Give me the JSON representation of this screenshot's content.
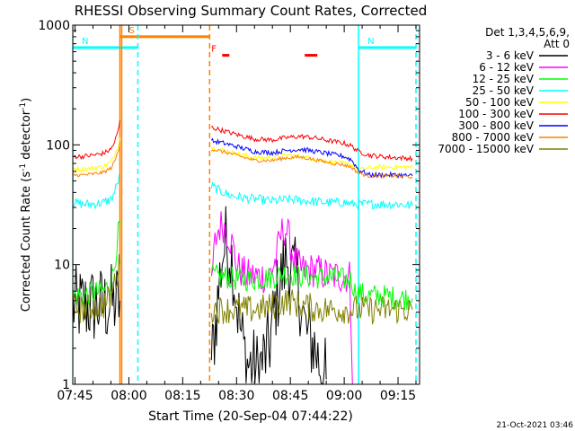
{
  "chart_data": {
    "type": "line",
    "title": "RHESSI Observing Summary Count Rates, Corrected",
    "xlabel": "Start Time (20-Sep-04 07:44:22)",
    "ylabel": "Corrected Count Rate (s⁻¹ detector⁻¹)",
    "ylabel_main": "Corrected Count Rate (s",
    "ylabel_sup1": "-1",
    "ylabel_mid": " detector",
    "ylabel_sup2": "-1",
    "ylabel_end": ")",
    "y_scale": "log",
    "ylim": [
      1,
      1000
    ],
    "xlim": [
      "07:44:22",
      "09:21:00"
    ],
    "x_tick_labels": [
      "07:45",
      "08:00",
      "08:15",
      "08:30",
      "08:45",
      "09:00",
      "09:15"
    ],
    "x_ticks_min": [
      45,
      60,
      75,
      90,
      105,
      120,
      135
    ],
    "y_tick_labels": [
      "1",
      "10",
      "100",
      "1000"
    ],
    "y_ticks": [
      1,
      10,
      100,
      1000
    ],
    "legend_header": [
      "Det 1,3,4,5,6,9,",
      "Att 0"
    ],
    "legend_placement": "right",
    "timestamp": "21-Oct-2021 03:46",
    "flags": [
      {
        "label": "S",
        "color": "#ff8000",
        "x": [
          "07:57:30",
          "08:22:30"
        ],
        "y": 800
      },
      {
        "label": "N",
        "color": "#00ffff",
        "x": [
          "07:44:22",
          "08:02:30"
        ],
        "y": 650
      },
      {
        "label": "N",
        "color": "#00ffff",
        "x": [
          "09:04:00",
          "09:20:00"
        ],
        "y": 650
      },
      {
        "label": "F",
        "color": "#ff0000",
        "x": [
          "08:26:00",
          "08:28:00"
        ],
        "y": 560
      },
      {
        "label": "",
        "color": "#ff0000",
        "x": [
          "08:49:00",
          "08:52:30"
        ],
        "y": 560
      }
    ],
    "vlines": [
      {
        "x": "07:44:22",
        "color": "#00ffff",
        "style": "solid"
      },
      {
        "x": "07:57:30",
        "color": "#ff8000",
        "style": "solid"
      },
      {
        "x": "07:58:00",
        "color": "#ff8000",
        "style": "solid"
      },
      {
        "x": "08:02:30",
        "color": "#00ffff",
        "style": "dashed"
      },
      {
        "x": "08:22:30",
        "color": "#ff8000",
        "style": "dashed"
      },
      {
        "x": "09:04:00",
        "color": "#00ffff",
        "style": "solid"
      },
      {
        "x": "09:20:00",
        "color": "#00ffff",
        "style": "dashed"
      }
    ],
    "series": [
      {
        "name": "3 - 6 keV",
        "color": "#000000",
        "noise": 0.35,
        "points": [
          [
            44.4,
            4.5
          ],
          [
            47,
            4.5
          ],
          [
            50,
            4.5
          ],
          [
            53,
            4.5
          ],
          [
            56,
            4.8
          ],
          [
            57.5,
            5
          ],
          [
            null,
            null
          ],
          [
            83,
            1.5
          ],
          [
            85,
            6
          ],
          [
            86,
            12
          ],
          [
            87,
            15
          ],
          [
            88,
            14
          ],
          [
            89,
            10
          ],
          [
            90,
            5
          ],
          [
            91,
            3
          ],
          [
            92,
            2
          ],
          [
            93,
            1.5
          ],
          [
            96,
            1.3
          ],
          [
            99,
            2
          ],
          [
            101,
            5
          ],
          [
            103,
            9
          ],
          [
            104,
            11
          ],
          [
            105,
            10
          ],
          [
            106,
            8
          ],
          [
            107,
            7
          ],
          [
            108,
            5
          ],
          [
            109,
            3
          ],
          [
            110,
            2.5
          ],
          [
            112,
            2
          ],
          [
            113,
            1.5
          ],
          [
            115,
            1.1
          ]
        ]
      },
      {
        "name": "6 - 12 keV",
        "color": "#ff00ff",
        "noise": 0.15,
        "points": [
          [
            83,
            7
          ],
          [
            84,
            15
          ],
          [
            85,
            20
          ],
          [
            86,
            22
          ],
          [
            87,
            20
          ],
          [
            88,
            17
          ],
          [
            89,
            14
          ],
          [
            90,
            10
          ],
          [
            91,
            9
          ],
          [
            93,
            8
          ],
          [
            96,
            8
          ],
          [
            99,
            8
          ],
          [
            101,
            11
          ],
          [
            102,
            16
          ],
          [
            103,
            20
          ],
          [
            104,
            19
          ],
          [
            105,
            15
          ],
          [
            106,
            11
          ],
          [
            108,
            9
          ],
          [
            112,
            9
          ],
          [
            116,
            8
          ],
          [
            120,
            8
          ],
          [
            121.5,
            8
          ],
          [
            122,
            3
          ],
          [
            122.3,
            1
          ]
        ]
      },
      {
        "name": "12 - 25 keV",
        "color": "#00ff00",
        "noise": 0.1,
        "points": [
          [
            44.4,
            5.5
          ],
          [
            47,
            5.5
          ],
          [
            50,
            5.8
          ],
          [
            53,
            6
          ],
          [
            55,
            7
          ],
          [
            56,
            10
          ],
          [
            57,
            18
          ],
          [
            57.5,
            22
          ],
          [
            null,
            null
          ],
          [
            83,
            8
          ],
          [
            86,
            8
          ],
          [
            90,
            7.5
          ],
          [
            95,
            7.5
          ],
          [
            100,
            7.8
          ],
          [
            104,
            8.5
          ],
          [
            108,
            8
          ],
          [
            112,
            7.8
          ],
          [
            116,
            7.8
          ],
          [
            120,
            7.5
          ],
          [
            122,
            7.5
          ],
          [
            123,
            6
          ],
          [
            126,
            5.5
          ],
          [
            130,
            5.5
          ],
          [
            135,
            5.3
          ],
          [
            139,
            5.2
          ]
        ]
      },
      {
        "name": "25 - 50 keV",
        "color": "#00ffff",
        "noise": 0.04,
        "points": [
          [
            44.4,
            33
          ],
          [
            47,
            32
          ],
          [
            50,
            32
          ],
          [
            53,
            33
          ],
          [
            55,
            35
          ],
          [
            56,
            40
          ],
          [
            57,
            50
          ],
          [
            57.5,
            55
          ],
          [
            null,
            null
          ],
          [
            83,
            45
          ],
          [
            85,
            42
          ],
          [
            88,
            38
          ],
          [
            92,
            36
          ],
          [
            96,
            35
          ],
          [
            100,
            34
          ],
          [
            105,
            35
          ],
          [
            110,
            34
          ],
          [
            115,
            33
          ],
          [
            120,
            33
          ],
          [
            122,
            32
          ],
          [
            125,
            32
          ],
          [
            130,
            32
          ],
          [
            135,
            32
          ],
          [
            139,
            31
          ]
        ]
      },
      {
        "name": "50 - 100 keV",
        "color": "#ffff00",
        "noise": 0.02,
        "points": [
          [
            44.4,
            64
          ],
          [
            47,
            62
          ],
          [
            50,
            64
          ],
          [
            53,
            66
          ],
          [
            55,
            72
          ],
          [
            56,
            82
          ],
          [
            57,
            100
          ],
          [
            57.5,
            115
          ],
          [
            null,
            null
          ],
          [
            83,
            95
          ],
          [
            86,
            90
          ],
          [
            90,
            85
          ],
          [
            95,
            78
          ],
          [
            100,
            78
          ],
          [
            104,
            82
          ],
          [
            108,
            80
          ],
          [
            112,
            76
          ],
          [
            116,
            72
          ],
          [
            120,
            70
          ],
          [
            122,
            68
          ],
          [
            124,
            62
          ],
          [
            127,
            64
          ],
          [
            130,
            65
          ],
          [
            135,
            65
          ],
          [
            139,
            65
          ]
        ]
      },
      {
        "name": "100 - 300 keV",
        "color": "#ff0000",
        "noise": 0.02,
        "points": [
          [
            44.4,
            80
          ],
          [
            47,
            80
          ],
          [
            50,
            82
          ],
          [
            53,
            85
          ],
          [
            55,
            92
          ],
          [
            56,
            105
          ],
          [
            57,
            130
          ],
          [
            57.5,
            160
          ],
          [
            null,
            null
          ],
          [
            83,
            140
          ],
          [
            86,
            132
          ],
          [
            90,
            122
          ],
          [
            95,
            112
          ],
          [
            100,
            110
          ],
          [
            104,
            115
          ],
          [
            108,
            118
          ],
          [
            112,
            114
          ],
          [
            116,
            108
          ],
          [
            120,
            103
          ],
          [
            122,
            98
          ],
          [
            124,
            88
          ],
          [
            127,
            82
          ],
          [
            130,
            80
          ],
          [
            135,
            78
          ],
          [
            139,
            77
          ]
        ]
      },
      {
        "name": "300 - 800 keV",
        "color": "#0000ff",
        "noise": 0.02,
        "points": [
          [
            83,
            108
          ],
          [
            86,
            104
          ],
          [
            90,
            97
          ],
          [
            95,
            88
          ],
          [
            100,
            86
          ],
          [
            104,
            90
          ],
          [
            108,
            92
          ],
          [
            112,
            88
          ],
          [
            116,
            84
          ],
          [
            120,
            80
          ],
          [
            122,
            75
          ],
          [
            124,
            62
          ],
          [
            127,
            56
          ],
          [
            130,
            56
          ],
          [
            135,
            56
          ],
          [
            139,
            55
          ]
        ]
      },
      {
        "name": "800 - 7000 keV",
        "color": "#ff8000",
        "noise": 0.015,
        "points": [
          [
            44.4,
            56
          ],
          [
            47,
            56
          ],
          [
            50,
            57
          ],
          [
            53,
            59
          ],
          [
            55,
            64
          ],
          [
            56,
            72
          ],
          [
            57,
            88
          ],
          [
            57.5,
            100
          ],
          [
            null,
            null
          ],
          [
            83,
            92
          ],
          [
            86,
            88
          ],
          [
            90,
            82
          ],
          [
            95,
            74
          ],
          [
            100,
            74
          ],
          [
            104,
            78
          ],
          [
            108,
            79
          ],
          [
            112,
            75
          ],
          [
            116,
            71
          ],
          [
            120,
            68
          ],
          [
            122,
            65
          ],
          [
            124,
            58
          ],
          [
            127,
            55
          ],
          [
            130,
            55
          ],
          [
            135,
            55
          ],
          [
            139,
            54
          ]
        ]
      },
      {
        "name": "7000 - 15000 keV",
        "color": "#808000",
        "noise": 0.12,
        "points": [
          [
            44.4,
            4.3
          ],
          [
            47,
            4.2
          ],
          [
            50,
            4.4
          ],
          [
            53,
            4.6
          ],
          [
            55,
            5.5
          ],
          [
            56,
            7
          ],
          [
            57,
            9
          ],
          [
            57.5,
            10
          ],
          [
            null,
            null
          ],
          [
            83,
            4.3
          ],
          [
            86,
            4.2
          ],
          [
            90,
            4.2
          ],
          [
            95,
            4.2
          ],
          [
            100,
            4.5
          ],
          [
            104,
            5
          ],
          [
            108,
            4.6
          ],
          [
            112,
            4.3
          ],
          [
            116,
            4.2
          ],
          [
            120,
            4.2
          ],
          [
            123,
            4.2
          ],
          [
            126,
            4.2
          ],
          [
            130,
            4.2
          ],
          [
            135,
            4.2
          ],
          [
            139,
            4.2
          ]
        ]
      }
    ]
  }
}
